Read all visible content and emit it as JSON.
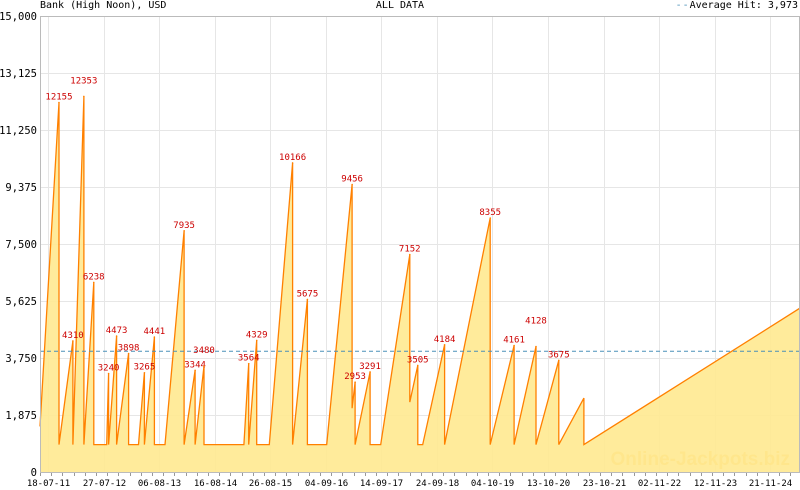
{
  "header": {
    "title": "Bank (High Noon), USD",
    "center": "ALL DATA",
    "legend_label": "Average Hit: 3,973"
  },
  "watermark": "Online-Jackpots.biz",
  "colors": {
    "fill": "#FFE990",
    "line": "#FF8000",
    "peak_label": "#CC0000",
    "average": "#4A90B8",
    "grid": "#E6E6E6",
    "watermark": "#FFCC66"
  },
  "chart_data": {
    "type": "area",
    "title": "Bank (High Noon), USD",
    "subtitle": "ALL DATA",
    "xlabel": "",
    "ylabel": "",
    "xlim": [
      "2011-05-25",
      "2025-06-10"
    ],
    "ylim": [
      0,
      15000
    ],
    "grid": true,
    "legend_placement": "top-right",
    "y_ticks": [
      "0",
      "1,875",
      "3,750",
      "5,625",
      "7,500",
      "9,375",
      "11,250",
      "13,125",
      "15,000"
    ],
    "y_tick_values": [
      0,
      1875,
      3750,
      5625,
      7500,
      9375,
      11250,
      13125,
      15000
    ],
    "x_ticks": [
      {
        "label": "18-07-11",
        "date": "2011-07-18"
      },
      {
        "label": "27-07-12",
        "date": "2012-07-27"
      },
      {
        "label": "06-08-13",
        "date": "2013-08-06"
      },
      {
        "label": "16-08-14",
        "date": "2014-08-16"
      },
      {
        "label": "26-08-15",
        "date": "2015-08-26"
      },
      {
        "label": "04-09-16",
        "date": "2016-09-04"
      },
      {
        "label": "14-09-17",
        "date": "2017-09-14"
      },
      {
        "label": "24-09-18",
        "date": "2018-09-24"
      },
      {
        "label": "04-10-19",
        "date": "2019-10-04"
      },
      {
        "label": "13-10-20",
        "date": "2020-10-13"
      },
      {
        "label": "23-10-21",
        "date": "2021-10-23"
      },
      {
        "label": "02-11-22",
        "date": "2022-11-02"
      },
      {
        "label": "12-11-23",
        "date": "2023-11-12"
      },
      {
        "label": "21-11-24",
        "date": "2024-11-21"
      }
    ],
    "average": {
      "name": "Average Hit",
      "value": 3973
    },
    "series": [
      {
        "points": [
          [
            "2011-05-25",
            1500
          ],
          [
            "2011-09-30",
            12155
          ],
          [
            "2011-09-30",
            900
          ],
          [
            "2012-01-02",
            4310
          ],
          [
            "2012-01-02",
            900
          ],
          [
            "2012-03-16",
            12353
          ],
          [
            "2012-03-16",
            900
          ],
          [
            "2012-05-22",
            6238
          ],
          [
            "2012-05-22",
            900
          ],
          [
            "2012-08-17",
            900
          ],
          [
            "2012-08-30",
            3240
          ],
          [
            "2012-08-30",
            900
          ],
          [
            "2012-10-23",
            4473
          ],
          [
            "2012-10-23",
            900
          ],
          [
            "2013-01-12",
            3898
          ],
          [
            "2013-01-12",
            900
          ],
          [
            "2013-03-20",
            900
          ],
          [
            "2013-04-29",
            3265
          ],
          [
            "2013-04-29",
            900
          ],
          [
            "2013-07-05",
            4441
          ],
          [
            "2013-07-05",
            900
          ],
          [
            "2013-09-15",
            900
          ],
          [
            "2014-01-22",
            7935
          ],
          [
            "2014-01-22",
            900
          ],
          [
            "2014-04-06",
            3344
          ],
          [
            "2014-04-06",
            900
          ],
          [
            "2014-06-05",
            3480
          ],
          [
            "2014-06-05",
            900
          ],
          [
            "2015-03-01",
            900
          ],
          [
            "2015-04-03",
            3564
          ],
          [
            "2015-04-03",
            900
          ],
          [
            "2015-05-27",
            4329
          ],
          [
            "2015-05-27",
            900
          ],
          [
            "2015-08-20",
            900
          ],
          [
            "2016-01-24",
            10166
          ],
          [
            "2016-01-24",
            900
          ],
          [
            "2016-05-03",
            5675
          ],
          [
            "2016-05-03",
            900
          ],
          [
            "2016-09-10",
            900
          ],
          [
            "2017-03-01",
            9456
          ],
          [
            "2017-03-01",
            2100
          ],
          [
            "2017-03-21",
            2953
          ],
          [
            "2017-03-21",
            900
          ],
          [
            "2017-06-30",
            3291
          ],
          [
            "2017-06-30",
            900
          ],
          [
            "2017-09-10",
            900
          ],
          [
            "2018-03-25",
            7152
          ],
          [
            "2018-03-25",
            2300
          ],
          [
            "2018-05-18",
            3505
          ],
          [
            "2018-05-18",
            900
          ],
          [
            "2018-06-20",
            900
          ],
          [
            "2018-11-15",
            4184
          ],
          [
            "2018-11-15",
            900
          ],
          [
            "2019-09-19",
            8355
          ],
          [
            "2019-09-19",
            900
          ],
          [
            "2020-02-27",
            4161
          ],
          [
            "2020-02-27",
            900
          ],
          [
            "2020-07-24",
            4128
          ],
          [
            "2020-07-24",
            900
          ],
          [
            "2020-12-25",
            3675
          ],
          [
            "2020-12-25",
            900
          ],
          [
            "2021-06-12",
            2430
          ],
          [
            "2021-06-12",
            900
          ],
          [
            "2025-06-10",
            5390
          ]
        ]
      }
    ],
    "peak_labels": [
      [
        "2011-09-30",
        12155
      ],
      [
        "2012-01-02",
        4310
      ],
      [
        "2012-03-16",
        12353
      ],
      [
        "2012-05-22",
        6238
      ],
      [
        "2012-08-30",
        3240
      ],
      [
        "2012-10-23",
        4473
      ],
      [
        "2013-01-12",
        3898
      ],
      [
        "2013-04-29",
        3265
      ],
      [
        "2013-07-05",
        4441
      ],
      [
        "2014-01-22",
        7935
      ],
      [
        "2014-04-06",
        3344
      ],
      [
        "2014-06-05",
        3480
      ],
      [
        "2015-04-03",
        3564
      ],
      [
        "2015-05-27",
        4329
      ],
      [
        "2016-01-24",
        10166
      ],
      [
        "2016-05-03",
        5675
      ],
      [
        "2017-03-01",
        9456
      ],
      [
        "2017-03-21",
        2953
      ],
      [
        "2017-06-30",
        3291
      ],
      [
        "2018-03-25",
        7152
      ],
      [
        "2018-05-18",
        3505
      ],
      [
        "2018-11-15",
        4184
      ],
      [
        "2019-09-19",
        8355
      ],
      [
        "2020-02-27",
        4161
      ],
      [
        "2020-07-24",
        4128
      ],
      [
        "2020-12-25",
        3675
      ]
    ]
  }
}
